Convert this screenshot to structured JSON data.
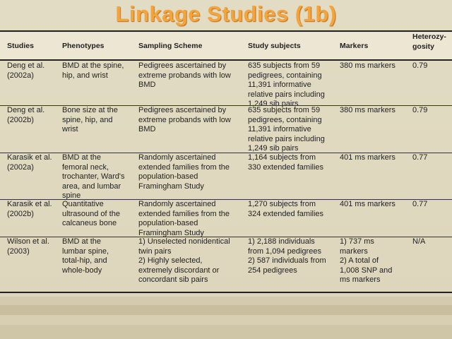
{
  "slide": {
    "title": "Linkage Studies (1b)"
  },
  "table": {
    "headers": [
      "Studies",
      "Phenotypes",
      "Sampling Scheme",
      "Study subjects",
      "Markers",
      "Heterozy-\ngosity"
    ],
    "rows": [
      [
        "Deng et al.\n(2002a)",
        "BMD at the spine,\nhip, and wrist",
        "Pedigrees ascertained by\nextreme probands with low\nBMD",
        "635 subjects from 59\npedigrees, containing\n11,391 informative\nrelative pairs including\n1,249 sib pairs",
        "380 ms markers",
        "0.79"
      ],
      [
        "Deng et al.\n(2002b)",
        "Bone size at the\nspine, hip, and\nwrist",
        "Pedigrees ascertained by\nextreme probands with low\nBMD",
        "635 subjects from 59\npedigrees, containing\n11,391 informative\nrelative pairs including\n1,249 sib pairs",
        "380 ms markers",
        "0.79"
      ],
      [
        "Karasik et al.\n(2002a)",
        "BMD at the\nfemoral neck,\ntrochanter, Ward's\narea, and lumbar\nspine",
        "Randomly ascertained\nextended families from the\npopulation-based\nFramingham Study",
        "1,164 subjects from\n330 extended families",
        "401 ms markers",
        "0.77"
      ],
      [
        "Karasik et al.\n(2002b)",
        "Quantitative\nultrasound of the\ncalcaneus bone",
        "Randomly ascertained\nextended families from the\npopulation-based\nFramingham Study",
        "1,270 subjects from\n324 extended families",
        "401 ms markers",
        "0.77"
      ],
      [
        "Wilson et al.\n(2003)",
        "BMD at the\nlumbar spine,\ntotal-hip, and\nwhole-body",
        "1) Unselected nonidentical\ntwin pairs\n2) Highly selected,\nextremely discordant or\nconcordant sib pairs",
        "1) 2,188 individuals\nfrom 1,094 pedigrees\n2) 587 individuals from\n254 pedigrees",
        "1) 737 ms\nmarkers\n2) A total of\n1,008 SNP and\nms markers",
        "N/A"
      ]
    ]
  }
}
